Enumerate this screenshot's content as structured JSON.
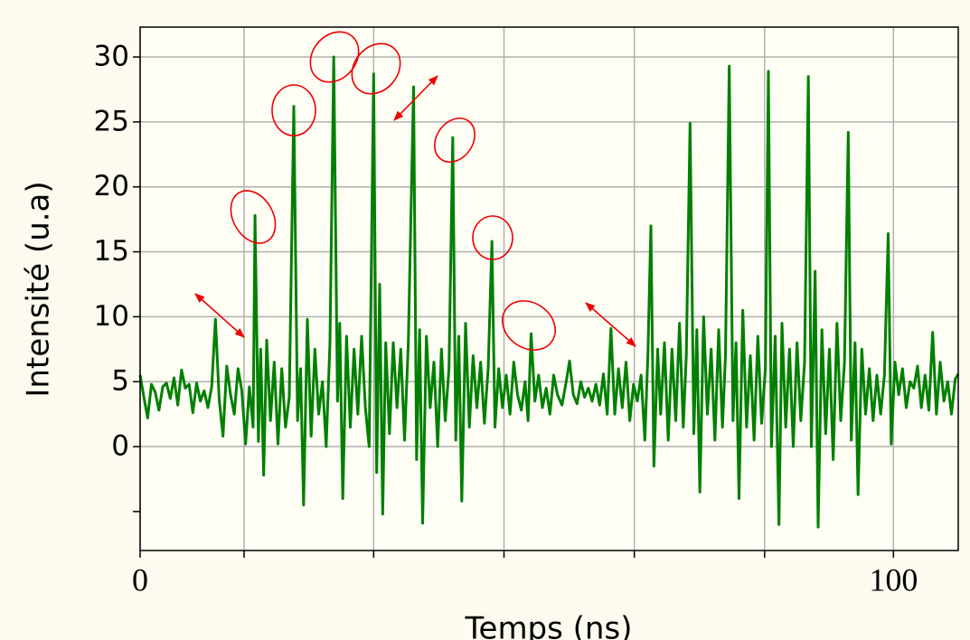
{
  "chart_data": {
    "type": "line",
    "xlabel": "Temps (ns)",
    "ylabel": "Intensité (u.a)",
    "x": [
      0,
      0.5,
      1,
      1.5,
      2,
      2.5,
      3,
      3.5,
      4,
      4.5,
      5,
      5.5,
      6,
      6.5,
      7,
      7.5,
      8,
      8.5,
      9,
      9.5,
      10,
      10.5,
      11,
      11.5,
      12,
      12.5,
      13,
      13.5,
      14,
      14.5,
      15,
      15.25,
      15.7,
      16,
      16.4,
      16.8,
      17.3,
      17.8,
      18.3,
      18.8,
      19.3,
      19.8,
      20.4,
      20.9,
      21.3,
      21.7,
      22.2,
      22.7,
      23.2,
      23.7,
      24.2,
      24.7,
      25.2,
      25.7,
      26.2,
      26.5,
      26.9,
      27.4,
      27.9,
      28.4,
      28.9,
      29.4,
      29.9,
      30.4,
      31.0,
      31.4,
      31.8,
      32.2,
      32.6,
      33.1,
      33.6,
      34.1,
      34.6,
      35.1,
      35.6,
      36.3,
      36.7,
      37.1,
      37.5,
      38.0,
      38.5,
      39.0,
      39.5,
      40.0,
      40.5,
      41.0,
      41.5,
      41.9,
      42.3,
      42.7,
      43.2,
      43.7,
      44.2,
      44.7,
      45.2,
      45.7,
      46.2,
      46.7,
      47.1,
      47.6,
      48.1,
      48.6,
      49.1,
      49.6,
      50.1,
      50.6,
      51.1,
      51.5,
      51.9,
      52.4,
      52.9,
      53.4,
      53.9,
      54.4,
      54.9,
      55.4,
      56.0,
      56.5,
      57.0,
      57.5,
      58.0,
      58.5,
      59.0,
      59.5,
      60.0,
      60.5,
      61.0,
      61.5,
      62.0,
      62.5,
      63.0,
      63.5,
      64.0,
      64.5,
      65.0,
      65.5,
      66.0,
      66.5,
      67.0,
      67.4,
      67.8,
      68.2,
      68.7,
      69.1,
      69.6,
      70.1,
      70.6,
      71.1,
      71.6,
      72.1,
      72.5,
      73.0,
      73.5,
      73.9,
      74.3,
      74.8,
      75.3,
      75.8,
      76.3,
      76.8,
      77.3,
      77.7,
      78.2,
      78.7,
      79.1,
      79.5,
      80.0,
      80.5,
      81.0,
      81.5,
      82.0,
      82.5,
      83.0,
      83.4,
      83.8,
      84.3,
      84.8,
      85.2,
      85.7,
      86.2,
      86.7,
      87.2,
      87.7,
      88.2,
      88.7,
      89.1,
      89.6,
      90.0,
      90.5,
      91.0,
      91.5,
      92.0,
      92.5,
      93.0,
      93.5,
      94.0,
      94.4,
      94.9,
      95.3,
      95.8,
      96.3,
      96.8,
      97.3,
      97.8,
      98.3,
      98.8,
      99.3,
      99.7,
      100.2,
      100.7,
      101.2,
      101.7,
      102.2,
      102.7,
      103.2,
      103.7,
      104.2,
      104.7,
      105.2,
      105.7,
      106.2,
      106.7,
      107.2,
      107.7,
      108.2,
      108.6
    ],
    "series": [
      {
        "color": "#008000",
        "values": [
          5.5,
          3.8,
          2.2,
          4.8,
          4.2,
          2.8,
          4.6,
          4.9,
          3.7,
          5.3,
          3.2,
          5.9,
          4.5,
          4.8,
          2.6,
          4.9,
          3.5,
          4.3,
          3.0,
          4.6,
          9.8,
          3.6,
          0.8,
          6.2,
          4.0,
          2.5,
          6.0,
          4.3,
          0.2,
          4.6,
          1.5,
          17.8,
          0.4,
          7.5,
          -2.2,
          8.2,
          2.0,
          6.5,
          0.2,
          6.0,
          1.5,
          3.8,
          26.2,
          2.0,
          6.0,
          -4.5,
          9.8,
          0.8,
          7.5,
          2.5,
          5.0,
          0.0,
          8.0,
          30.0,
          3.5,
          9.5,
          -4.0,
          8.5,
          1.5,
          7.5,
          2.5,
          8.5,
          3.0,
          0.0,
          28.7,
          -2.0,
          12.5,
          -5.2,
          8.0,
          1.0,
          8.0,
          3.0,
          7.5,
          0.5,
          8.0,
          27.7,
          -1.0,
          9.0,
          -5.9,
          8.5,
          3.0,
          6.5,
          0.0,
          7.5,
          2.0,
          6.0,
          23.8,
          0.5,
          8.5,
          -4.2,
          9.5,
          1.5,
          7.0,
          3.0,
          6.5,
          1.8,
          6.0,
          15.8,
          1.5,
          6.0,
          3.0,
          5.5,
          2.5,
          6.5,
          4.0,
          2.8,
          5.0,
          2.0,
          8.7,
          3.5,
          5.5,
          3.0,
          4.5,
          2.5,
          5.5,
          4.0,
          3.2,
          4.8,
          6.6,
          4.0,
          3.3,
          5.0,
          3.8,
          4.5,
          3.5,
          4.8,
          3.2,
          5.6,
          2.5,
          9.1,
          2.5,
          6.0,
          3.0,
          6.5,
          2.0,
          4.8,
          3.5,
          5.5,
          0.5,
          7.0,
          17.0,
          -1.5,
          7.5,
          2.5,
          8.0,
          0.5,
          7.5,
          2.0,
          9.5,
          1.5,
          7.0,
          24.9,
          1.0,
          9.0,
          -3.5,
          10.0,
          2.5,
          7.5,
          0.5,
          9.0,
          1.5,
          7.0,
          29.3,
          2.0,
          8.0,
          -4.0,
          10.5,
          1.5,
          7.0,
          0.5,
          8.5,
          1.8,
          6.0,
          28.9,
          0.0,
          8.5,
          -6.0,
          9.5,
          1.5,
          7.5,
          0.0,
          8.0,
          2.0,
          6.5,
          28.5,
          0.0,
          13.5,
          -6.2,
          9.0,
          1.0,
          7.5,
          -1.0,
          9.5,
          2.0,
          6.5,
          24.2,
          0.5,
          8.0,
          -3.7,
          7.5,
          2.5,
          6.0,
          2.0,
          5.5,
          2.5,
          5.5,
          16.4,
          0.2,
          6.5,
          4.0,
          6.0,
          3.0,
          5.0,
          4.5,
          6.2,
          3.0,
          5.5,
          2.8,
          8.8,
          2.5,
          6.5,
          3.5,
          5.0,
          2.5,
          5.2,
          5.6
        ]
      }
    ],
    "xlim": [
      0,
      108.6
    ],
    "ylim": [
      -8,
      32.3
    ],
    "xticks": [
      0,
      {
        "value": 13.8,
        "label": null
      },
      {
        "value": 31.0,
        "label": null
      },
      {
        "value": 48.3,
        "label": null
      },
      {
        "value": 65.6,
        "label": null
      },
      {
        "value": 82.9,
        "label": null
      },
      100
    ],
    "yticks": [
      {
        "value": -5,
        "label": null
      },
      0,
      5,
      10,
      15,
      20,
      25,
      30
    ],
    "grid": true
  }
}
